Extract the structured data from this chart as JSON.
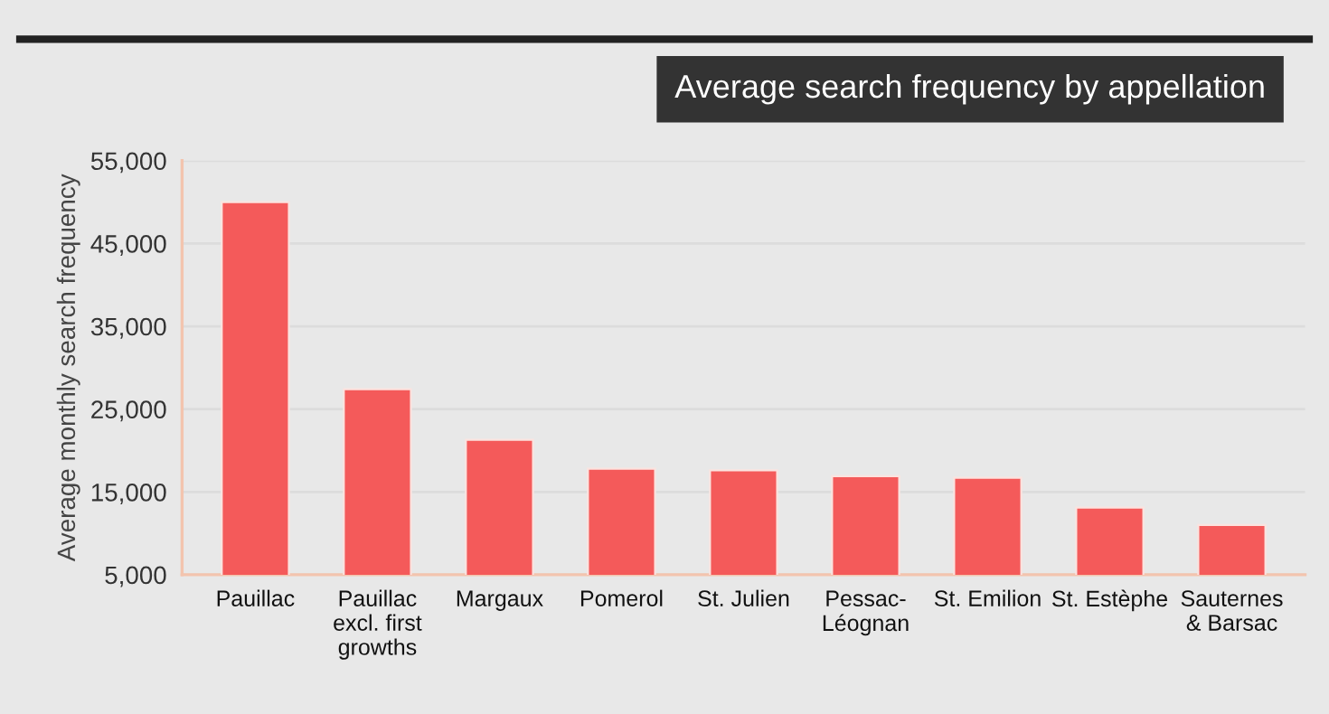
{
  "chart_data": {
    "type": "bar",
    "title": "Average search frequency by appellation",
    "ylabel": "Average monthly search frequency",
    "categories": [
      "Pauillac",
      "Pauillac\nexcl. first\ngrowths",
      "Margaux",
      "Pomerol",
      "St. Julien",
      "Pessac-\nLéognan",
      "St. Emilion",
      "St. Estèphe",
      "Sauternes\n& Barsac"
    ],
    "values": [
      50000,
      27400,
      21300,
      17800,
      17600,
      16900,
      16700,
      13100,
      11000
    ],
    "color": "#f45a5a",
    "ylim": [
      5000,
      55000
    ],
    "yticks": [
      {
        "value": 5000,
        "label": "5,000"
      },
      {
        "value": 15000,
        "label": "15,000"
      },
      {
        "value": 25000,
        "label": "25,000"
      },
      {
        "value": 35000,
        "label": "35,000"
      },
      {
        "value": 45000,
        "label": "45,000"
      },
      {
        "value": 55000,
        "label": "55,000"
      }
    ],
    "grid": "y"
  }
}
